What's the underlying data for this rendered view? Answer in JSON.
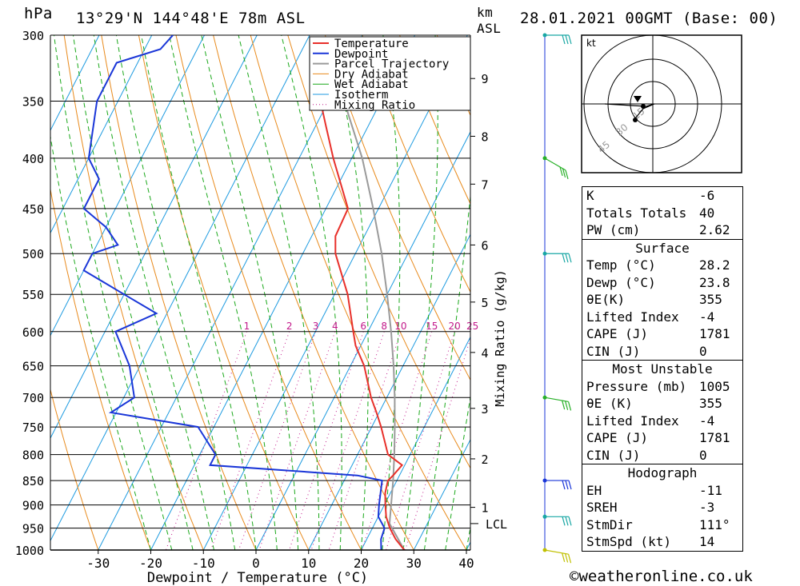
{
  "header": {
    "hpa_unit": "hPa",
    "location": "13°29'N  144°48'E  78m  ASL",
    "km_unit": "km",
    "asl_unit": "ASL",
    "datetime": "28.01.2021  00GMT  (Base: 00)"
  },
  "chart_data": {
    "type": "skew-t log-p sounding",
    "xlabel": "Dewpoint / Temperature (°C)",
    "ylabel": "hPa",
    "y2label": "Mixing Ratio (g/kg)",
    "x_ticks": [
      -30,
      -20,
      -10,
      0,
      10,
      20,
      30,
      40
    ],
    "x_tick_labels": [
      "-30",
      "-20",
      "-10",
      "0",
      "10",
      "20",
      "30",
      "40"
    ],
    "pressure_levels": [
      300,
      350,
      400,
      450,
      500,
      550,
      600,
      650,
      700,
      750,
      800,
      850,
      900,
      950,
      1000
    ],
    "pressure_labels": [
      "300",
      "350",
      "400",
      "450",
      "500",
      "550",
      "600",
      "650",
      "700",
      "750",
      "800",
      "850",
      "900",
      "950",
      "1000"
    ],
    "km_ticks": [
      {
        "km": 1,
        "p": 905,
        "label": "1"
      },
      {
        "km": 2,
        "p": 808,
        "label": "2"
      },
      {
        "km": 3,
        "p": 718,
        "label": "3"
      },
      {
        "km": 4,
        "p": 630,
        "label": "4"
      },
      {
        "km": 5,
        "p": 560,
        "label": "5"
      },
      {
        "km": 6,
        "p": 490,
        "label": "6"
      },
      {
        "km": 7,
        "p": 425,
        "label": "7"
      },
      {
        "km": 8,
        "p": 380,
        "label": "8"
      },
      {
        "km": 9,
        "p": 332,
        "label": "9"
      }
    ],
    "lcl": {
      "p": 940,
      "label": "LCL"
    },
    "mixing_ratio_lines": [
      1,
      2,
      3,
      4,
      6,
      8,
      10,
      15,
      20,
      25
    ],
    "mixing_ratio_labels": [
      "1",
      "2",
      "3",
      "4",
      "6",
      "8",
      "10",
      "15",
      "20",
      "25"
    ],
    "temperature": [
      {
        "p": 1000,
        "t": 28.2
      },
      {
        "p": 975,
        "t": 25.5
      },
      {
        "p": 950,
        "t": 23.3
      },
      {
        "p": 925,
        "t": 21.5
      },
      {
        "p": 900,
        "t": 20.2
      },
      {
        "p": 875,
        "t": 19.0
      },
      {
        "p": 850,
        "t": 18.3
      },
      {
        "p": 840,
        "t": 18.8
      },
      {
        "p": 820,
        "t": 19.5
      },
      {
        "p": 800,
        "t": 15.8
      },
      {
        "p": 750,
        "t": 11.8
      },
      {
        "p": 725,
        "t": 9.5
      },
      {
        "p": 700,
        "t": 7.0
      },
      {
        "p": 650,
        "t": 2.6
      },
      {
        "p": 620,
        "t": -1.0
      },
      {
        "p": 600,
        "t": -2.8
      },
      {
        "p": 550,
        "t": -7.5
      },
      {
        "p": 500,
        "t": -13.8
      },
      {
        "p": 480,
        "t": -15.5
      },
      {
        "p": 450,
        "t": -15.8
      },
      {
        "p": 400,
        "t": -23.5
      },
      {
        "p": 370,
        "t": -28.2
      },
      {
        "p": 350,
        "t": -31.5
      }
    ],
    "temperature_upper": [
      {
        "p": 300,
        "t": -40.7
      },
      {
        "p": 280,
        "t": -41.5
      }
    ],
    "dewpoint": [
      {
        "p": 1000,
        "t": 23.8
      },
      {
        "p": 975,
        "t": 22.7
      },
      {
        "p": 950,
        "t": 22.3
      },
      {
        "p": 925,
        "t": 20.0
      },
      {
        "p": 900,
        "t": 19.0
      },
      {
        "p": 850,
        "t": 17.2
      },
      {
        "p": 840,
        "t": 12.0
      },
      {
        "p": 820,
        "t": -17.0
      },
      {
        "p": 800,
        "t": -17.0
      },
      {
        "p": 750,
        "t": -23.0
      },
      {
        "p": 725,
        "t": -41.0
      },
      {
        "p": 700,
        "t": -38.0
      },
      {
        "p": 650,
        "t": -42.0
      },
      {
        "p": 600,
        "t": -48.0
      },
      {
        "p": 575,
        "t": -42.0
      },
      {
        "p": 550,
        "t": -50.0
      },
      {
        "p": 520,
        "t": -60.0
      },
      {
        "p": 500,
        "t": -60.0
      },
      {
        "p": 490,
        "t": -56.0
      },
      {
        "p": 470,
        "t": -60.0
      },
      {
        "p": 450,
        "t": -66.0
      },
      {
        "p": 420,
        "t": -66.0
      },
      {
        "p": 400,
        "t": -70.0
      },
      {
        "p": 350,
        "t": -74.0
      },
      {
        "p": 320,
        "t": -74.0
      },
      {
        "p": 310,
        "t": -67.0
      },
      {
        "p": 300,
        "t": -66.0
      }
    ],
    "parcel": [
      {
        "p": 1000,
        "t": 28.2
      },
      {
        "p": 940,
        "t": 22.8
      },
      {
        "p": 900,
        "t": 21.3
      },
      {
        "p": 850,
        "t": 19.3
      },
      {
        "p": 800,
        "t": 17.0
      },
      {
        "p": 750,
        "t": 14.4
      },
      {
        "p": 700,
        "t": 11.5
      },
      {
        "p": 650,
        "t": 8.2
      },
      {
        "p": 600,
        "t": 4.4
      },
      {
        "p": 550,
        "t": 0.0
      },
      {
        "p": 500,
        "t": -5.0
      },
      {
        "p": 450,
        "t": -11.0
      },
      {
        "p": 400,
        "t": -18.0
      },
      {
        "p": 350,
        "t": -27.0
      }
    ],
    "legend": [
      "Temperature",
      "Dewpoint",
      "Parcel Trajectory",
      "Dry Adiabat",
      "Wet Adiabat",
      "Isotherm",
      "Mixing Ratio"
    ],
    "legend_placement": "top-right",
    "colors": {
      "temperature": "#e8302a",
      "dewpoint": "#1a36d8",
      "parcel": "#9a9a9a",
      "dry_adiabat": "#e88a1c",
      "wet_adiabat": "#1aa81a",
      "isotherm": "#1c9ae0",
      "mixing_ratio": "#c2188a",
      "wind_barb": "#19a7a4",
      "grid": "#000000"
    },
    "wind_barbs": [
      {
        "p": 300,
        "direction": 90,
        "color": "#19a7a4"
      },
      {
        "p": 400,
        "direction": 60,
        "color": "#28b028"
      },
      {
        "p": 500,
        "direction": 90,
        "color": "#19a7a4"
      },
      {
        "p": 700,
        "direction": 80,
        "color": "#28b028"
      },
      {
        "p": 850,
        "direction": 90,
        "color": "#1a36d8"
      },
      {
        "p": 925,
        "direction": 90,
        "color": "#19a7a4"
      },
      {
        "p": 1000,
        "direction": 80,
        "color": "#c0c000"
      }
    ]
  },
  "hodograph": {
    "unit": "kt",
    "ring_labels": [
      "15",
      "30",
      "45"
    ],
    "points": [
      [
        -4,
        -1
      ],
      [
        -2,
        -1
      ],
      [
        1,
        0
      ],
      [
        6,
        0
      ],
      [
        3,
        -2
      ],
      [
        -3,
        3
      ]
    ],
    "storm_motion_marker": "arrow"
  },
  "indices": {
    "rows": [
      {
        "label": "K",
        "value": "-6"
      },
      {
        "label": "Totals Totals",
        "value": "40"
      },
      {
        "label": "PW (cm)",
        "value": "2.62"
      }
    ],
    "surface": {
      "title": "Surface",
      "rows": [
        {
          "label": "Temp (°C)",
          "value": "28.2"
        },
        {
          "label": "Dewp (°C)",
          "value": "23.8"
        },
        {
          "label": "θE(K)",
          "value": "355"
        },
        {
          "label": "Lifted Index",
          "value": "-4"
        },
        {
          "label": "CAPE (J)",
          "value": "1781"
        },
        {
          "label": "CIN (J)",
          "value": "0"
        }
      ]
    },
    "most_unstable": {
      "title": "Most Unstable",
      "rows": [
        {
          "label": "Pressure (mb)",
          "value": "1005"
        },
        {
          "label": "θE (K)",
          "value": "355"
        },
        {
          "label": "Lifted Index",
          "value": "-4"
        },
        {
          "label": "CAPE (J)",
          "value": "1781"
        },
        {
          "label": "CIN (J)",
          "value": "0"
        }
      ]
    },
    "hodograph_params": {
      "title": "Hodograph",
      "rows": [
        {
          "label": "EH",
          "value": "-11"
        },
        {
          "label": "SREH",
          "value": "-3"
        },
        {
          "label": "StmDir",
          "value": "111°"
        },
        {
          "label": "StmSpd (kt)",
          "value": "14"
        }
      ]
    }
  },
  "footer": {
    "copyright": "©weatheronline.co.uk"
  }
}
